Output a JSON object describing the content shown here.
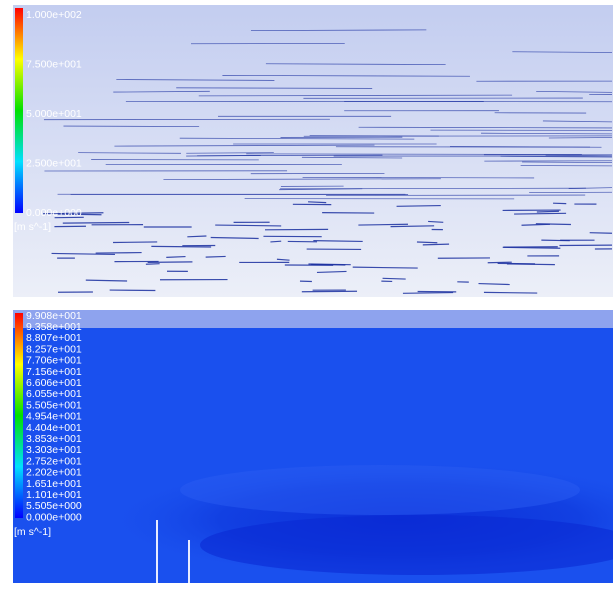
{
  "panels": [
    {
      "legend": {
        "labels": [
          "1.000e+002",
          "7.500e+001",
          "5.000e+001",
          "2.500e+001",
          "0.000e+000"
        ],
        "unit": "[m s^-1]"
      }
    },
    {
      "legend": {
        "labels": [
          "9.908e+001",
          "9.358e+001",
          "8.807e+001",
          "8.257e+001",
          "7.706e+001",
          "7.156e+001",
          "6.606e+001",
          "6.055e+001",
          "5.505e+001",
          "4.954e+001",
          "4.404e+001",
          "3.853e+001",
          "3.303e+001",
          "2.752e+001",
          "2.202e+001",
          "1.651e+001",
          "1.101e+001",
          "5.505e+000",
          "0.000e+000"
        ],
        "unit": "[m s^-1]"
      }
    }
  ]
}
